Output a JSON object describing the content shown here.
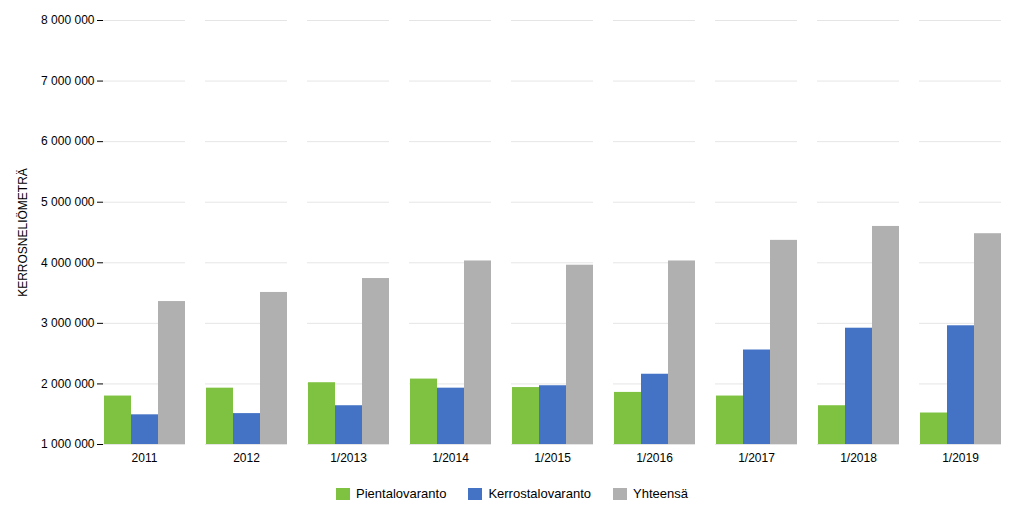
{
  "chart_data": {
    "type": "bar",
    "ylabel": "KERROSNELIÖMETRÄ",
    "categories": [
      "2011",
      "2012",
      "1/2013",
      "1/2014",
      "1/2015",
      "1/2016",
      "1/2017",
      "1/2018",
      "1/2019"
    ],
    "series": [
      {
        "name": "Pientalovaranto",
        "color": "#7fc242",
        "values": [
          1800000,
          1930000,
          2020000,
          2080000,
          1940000,
          1860000,
          1800000,
          1640000,
          1520000
        ]
      },
      {
        "name": "Kerrostalovaranto",
        "color": "#4472c4",
        "values": [
          1490000,
          1510000,
          1640000,
          1930000,
          1970000,
          2160000,
          2560000,
          2920000,
          2960000
        ]
      },
      {
        "name": "Yhteensä",
        "color": "#b0b0b0",
        "values": [
          3360000,
          3510000,
          3740000,
          4030000,
          3960000,
          4030000,
          4370000,
          4600000,
          4480000
        ]
      }
    ],
    "ylim": [
      1000000,
      8000000
    ],
    "yticks": [
      {
        "value": 1000000,
        "label": "1 000 000"
      },
      {
        "value": 2000000,
        "label": "2 000 000"
      },
      {
        "value": 3000000,
        "label": "3 000 000"
      },
      {
        "value": 4000000,
        "label": "4 000 000"
      },
      {
        "value": 5000000,
        "label": "5 000 000"
      },
      {
        "value": 6000000,
        "label": "6 000 000"
      },
      {
        "value": 7000000,
        "label": "7 000 000"
      },
      {
        "value": 8000000,
        "label": "8 000 000"
      }
    ],
    "grid": true,
    "legend": "bottom"
  }
}
